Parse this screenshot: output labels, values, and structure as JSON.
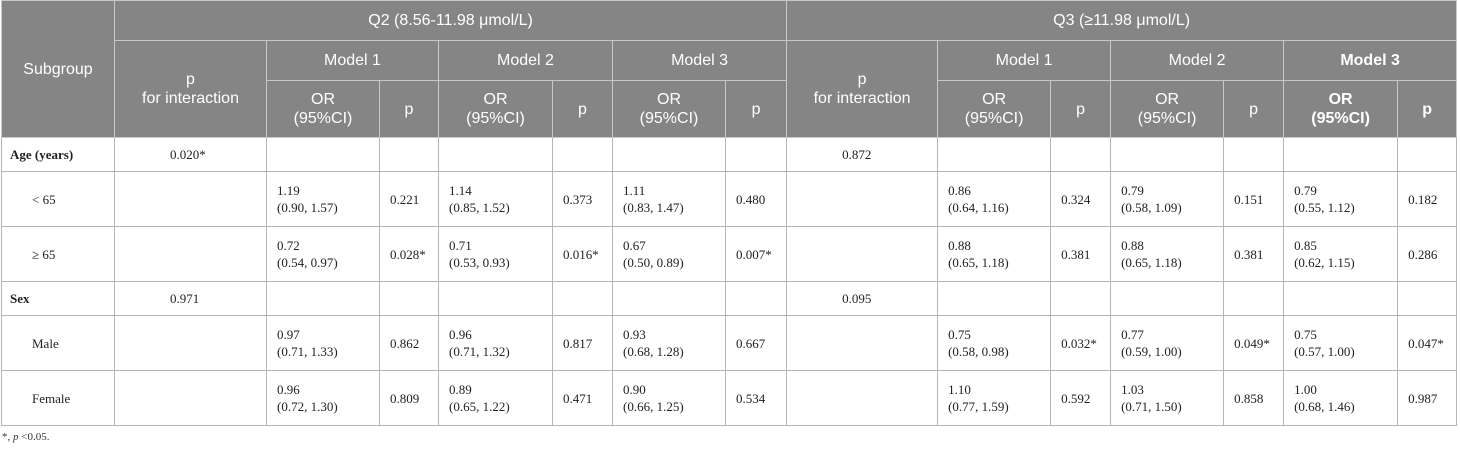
{
  "header": {
    "subgroup": "Subgroup",
    "groups": [
      {
        "title": "Q2 (8.56-11.98 μmol/L)",
        "p_interaction": [
          "p",
          "for interaction"
        ],
        "models": [
          {
            "name": "Model 1",
            "or": [
              "OR",
              "(95%CI)"
            ],
            "p": "p"
          },
          {
            "name": "Model 2",
            "or": [
              "OR",
              "(95%CI)"
            ],
            "p": "p"
          },
          {
            "name": "Model 3",
            "or": [
              "OR",
              "(95%CI)"
            ],
            "p": "p"
          }
        ]
      },
      {
        "title": "Q3 (≥11.98 μmol/L)",
        "p_interaction": [
          "p",
          "for interaction"
        ],
        "models": [
          {
            "name": "Model 1",
            "or": [
              "OR",
              "(95%CI)"
            ],
            "p": "p"
          },
          {
            "name": "Model 2",
            "or": [
              "OR",
              "(95%CI)"
            ],
            "p": "p"
          },
          {
            "name": "Model 3",
            "or": [
              "OR",
              "(95%CI)"
            ],
            "p": "p",
            "bold": true
          }
        ]
      }
    ]
  },
  "rows": [
    {
      "label": "Age (years)",
      "p_interaction": [
        "0.020*",
        "0.872"
      ]
    },
    {
      "label": "< 65",
      "results": [
        [
          {
            "or": "1.19",
            "ci": "(0.90, 1.57)",
            "p": "0.221"
          },
          {
            "or": "1.14",
            "ci": "(0.85, 1.52)",
            "p": "0.373"
          },
          {
            "or": "1.11",
            "ci": "(0.83, 1.47)",
            "p": "0.480"
          }
        ],
        [
          {
            "or": "0.86",
            "ci": "(0.64, 1.16)",
            "p": "0.324"
          },
          {
            "or": "0.79",
            "ci": "(0.58, 1.09)",
            "p": "0.151"
          },
          {
            "or": "0.79",
            "ci": "(0.55, 1.12)",
            "p": "0.182"
          }
        ]
      ]
    },
    {
      "label": "≥ 65",
      "results": [
        [
          {
            "or": "0.72",
            "ci": "(0.54, 0.97)",
            "p": "0.028*"
          },
          {
            "or": "0.71",
            "ci": "(0.53, 0.93)",
            "p": "0.016*"
          },
          {
            "or": "0.67",
            "ci": "(0.50, 0.89)",
            "p": "0.007*"
          }
        ],
        [
          {
            "or": "0.88",
            "ci": "(0.65, 1.18)",
            "p": "0.381"
          },
          {
            "or": "0.88",
            "ci": "(0.65, 1.18)",
            "p": "0.381"
          },
          {
            "or": "0.85",
            "ci": "(0.62, 1.15)",
            "p": "0.286"
          }
        ]
      ]
    },
    {
      "label": "Sex",
      "p_interaction": [
        "0.971",
        "0.095"
      ]
    },
    {
      "label": "Male",
      "results": [
        [
          {
            "or": "0.97",
            "ci": "(0.71, 1.33)",
            "p": "0.862"
          },
          {
            "or": "0.96",
            "ci": "(0.71, 1.32)",
            "p": "0.817"
          },
          {
            "or": "0.93",
            "ci": "(0.68, 1.28)",
            "p": "0.667"
          }
        ],
        [
          {
            "or": "0.75",
            "ci": "(0.58, 0.98)",
            "p": "0.032*"
          },
          {
            "or": "0.77",
            "ci": "(0.59, 1.00)",
            "p": "0.049*"
          },
          {
            "or": "0.75",
            "ci": "(0.57, 1.00)",
            "p": "0.047*"
          }
        ]
      ]
    },
    {
      "label": "Female",
      "results": [
        [
          {
            "or": "0.96",
            "ci": "(0.72, 1.30)",
            "p": "0.809"
          },
          {
            "or": "0.89",
            "ci": "(0.65, 1.22)",
            "p": "0.471"
          },
          {
            "or": "0.90",
            "ci": "(0.66, 1.25)",
            "p": "0.534"
          }
        ],
        [
          {
            "or": "1.10",
            "ci": "(0.77, 1.59)",
            "p": "0.592"
          },
          {
            "or": "1.03",
            "ci": "(0.71, 1.50)",
            "p": "0.858"
          },
          {
            "or": "1.00",
            "ci": "(0.68, 1.46)",
            "p": "0.987"
          }
        ]
      ]
    }
  ],
  "footnote": [
    "*, ",
    "p",
    " <0.05."
  ]
}
